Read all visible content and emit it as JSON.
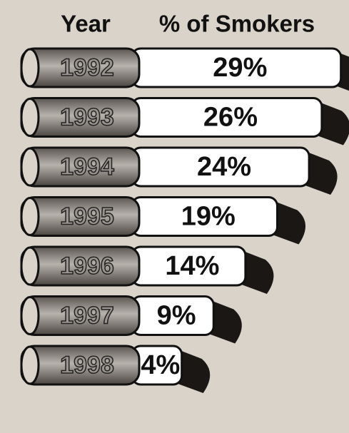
{
  "chart_data": {
    "type": "cigarette-bar",
    "category_header": "Year",
    "value_header": "% of Smokers",
    "categories": [
      "1992",
      "1993",
      "1994",
      "1995",
      "1996",
      "1997",
      "1998"
    ],
    "values": [
      29,
      26,
      24,
      19,
      14,
      9,
      4
    ],
    "value_labels": [
      "29%",
      "26%",
      "24%",
      "19%",
      "14%",
      "9%",
      "4%"
    ],
    "color": "#ffffff",
    "filter_color": "#8a8580"
  }
}
